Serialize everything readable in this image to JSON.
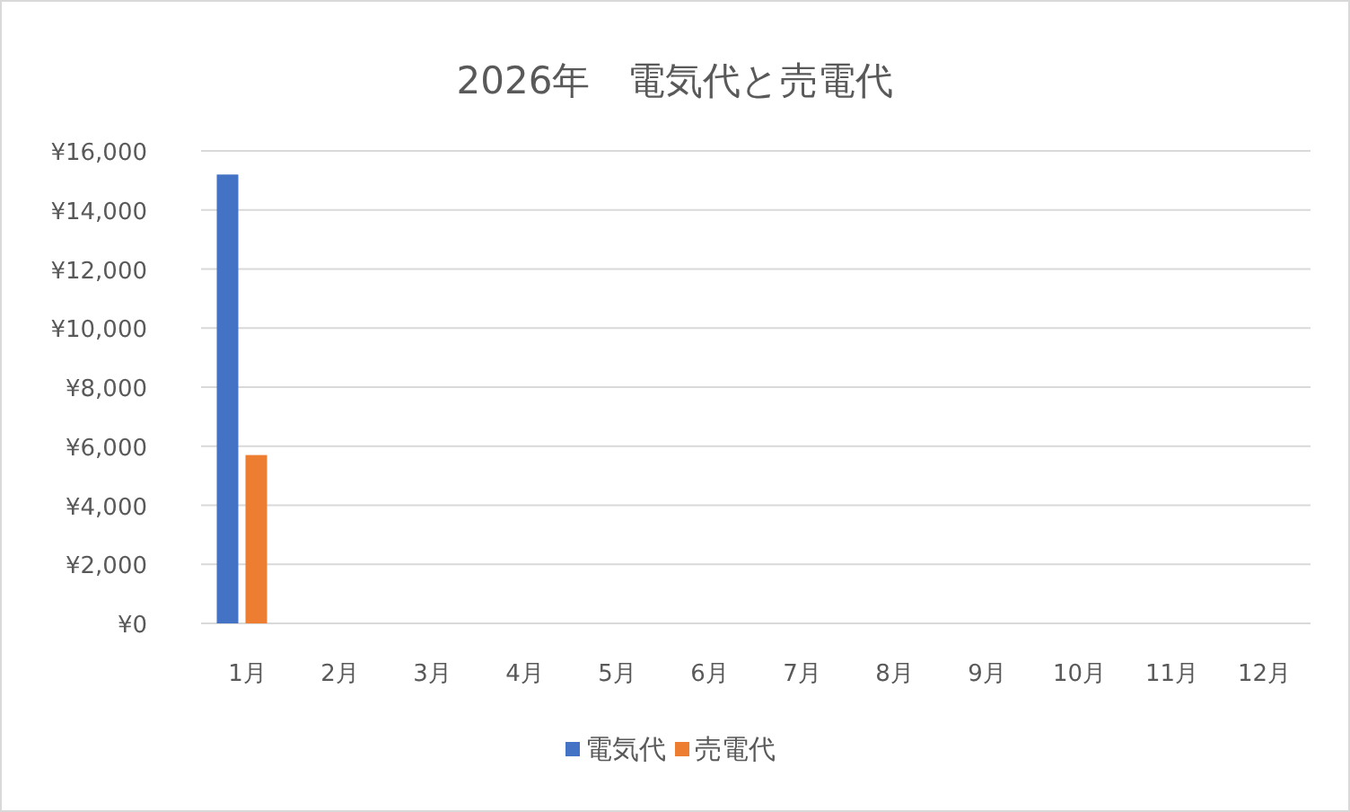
{
  "chart_data": {
    "type": "bar",
    "title": "2026年　電気代と売電代",
    "categories": [
      "1月",
      "2月",
      "3月",
      "4月",
      "5月",
      "6月",
      "7月",
      "8月",
      "9月",
      "10月",
      "11月",
      "12月"
    ],
    "series": [
      {
        "name": "電気代",
        "color": "#4472c4",
        "values": [
          15200,
          null,
          null,
          null,
          null,
          null,
          null,
          null,
          null,
          null,
          null,
          null
        ]
      },
      {
        "name": "売電代",
        "color": "#ed7d31",
        "values": [
          5700,
          null,
          null,
          null,
          null,
          null,
          null,
          null,
          null,
          null,
          null,
          null
        ]
      }
    ],
    "ylim": [
      0,
      16000
    ],
    "yticks": [
      {
        "value": 0,
        "label": "¥0"
      },
      {
        "value": 2000,
        "label": "¥2,000"
      },
      {
        "value": 4000,
        "label": "¥4,000"
      },
      {
        "value": 6000,
        "label": "¥6,000"
      },
      {
        "value": 8000,
        "label": "¥8,000"
      },
      {
        "value": 10000,
        "label": "¥10,000"
      },
      {
        "value": 12000,
        "label": "¥12,000"
      },
      {
        "value": 14000,
        "label": "¥14,000"
      },
      {
        "value": 16000,
        "label": "¥16,000"
      }
    ],
    "grid": "y",
    "legend": "bottom"
  }
}
